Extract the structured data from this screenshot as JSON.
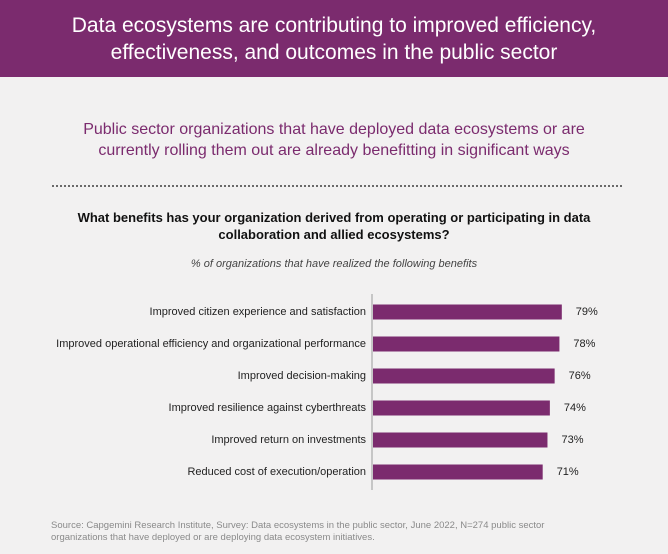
{
  "header": {
    "title_line1": "Data ecosystems are contributing to improved efficiency,",
    "title_line2": "effectiveness, and outcomes in the public sector"
  },
  "subtitle": {
    "line1": "Public sector organizations that have deployed data ecosystems or are",
    "line2": "currently rolling them out are already benefitting in significant ways"
  },
  "question": {
    "line1": "What benefits has your organization derived from operating or participating in data",
    "line2": "collaboration and allied ecosystems?"
  },
  "caption": "% of organizations that have realized the following benefits",
  "source": {
    "line1": "Source: Capgemini Research Institute, Survey: Data ecosystems in the public sector, June 2022, N=274 public sector",
    "line2": "organizations that have deployed or are deploying data ecosystem initiatives."
  },
  "colors": {
    "accent": "#7b2b6e",
    "background": "#f2f1f1"
  },
  "chart_data": {
    "type": "bar",
    "orientation": "horizontal",
    "categories": [
      "Improved citizen experience and satisfaction",
      "Improved operational efficiency and organizational performance",
      "Improved decision-making",
      "Improved resilience against cyberthreats",
      "Improved return on investments",
      "Reduced cost of execution/operation"
    ],
    "values": [
      79,
      78,
      76,
      74,
      73,
      71
    ],
    "value_labels": [
      "79%",
      "78%",
      "76%",
      "74%",
      "73%",
      "71%"
    ],
    "unit": "%",
    "xlim": [
      0,
      100
    ],
    "grid": false,
    "legend": "none"
  }
}
